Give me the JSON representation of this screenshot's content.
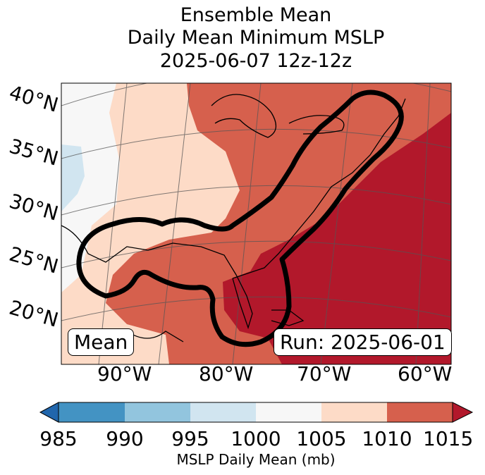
{
  "title": {
    "line1": "Ensemble Mean",
    "line2": "Daily Mean Minimum MSLP",
    "line3": "2025-06-07 12z-12z"
  },
  "map": {
    "lat_labels": [
      "40°N",
      "35°N",
      "30°N",
      "25°N",
      "20°N"
    ],
    "lon_labels": [
      "90°W",
      "80°W",
      "70°W",
      "60°W"
    ],
    "mean_box": "Mean",
    "run_box": "Run: 2025-06-01"
  },
  "colorbar": {
    "ticks": [
      "985",
      "990",
      "995",
      "1000",
      "1005",
      "1010",
      "1015"
    ],
    "label": "MSLP Daily Mean (mb)",
    "colors": {
      "under": "#2166ac",
      "985-990": "#4393c3",
      "990-995": "#92c5de",
      "995-1000": "#d1e5f0",
      "1000-1005": "#f7f7f7",
      "1005-1010": "#fddbc7",
      "1010-1015": "#d6604d",
      "over": "#b2182b"
    }
  }
}
